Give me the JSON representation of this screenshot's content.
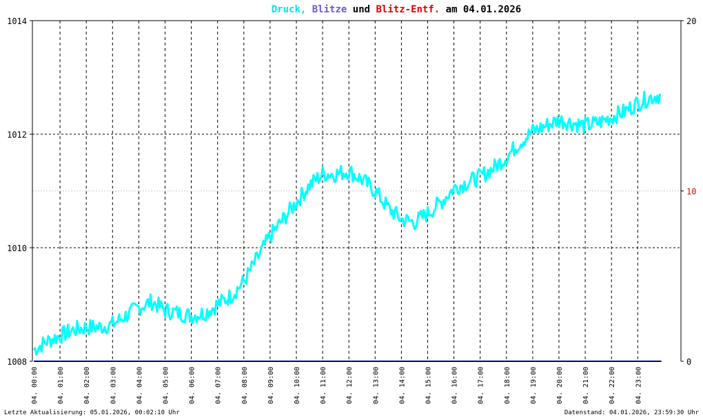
{
  "title": {
    "parts": [
      {
        "text": "Druck,",
        "color": "#00e5e5"
      },
      {
        "text": "Blitze",
        "color": "#6a5acd"
      },
      {
        "text": "und",
        "color": "#000000"
      },
      {
        "text": "Blitz-Entf.",
        "color": "#e00000"
      },
      {
        "text": "am 04.01.2026",
        "color": "#000000"
      }
    ]
  },
  "footer": {
    "left": "Letzte Aktualisierung: 05.01.2026, 00:02:10 Uhr",
    "right": "Datenstand: 04.01.2026, 23:59:30 Uhr"
  },
  "colors": {
    "pressure": "#00ffff",
    "lightning": "#00008b",
    "distance_axis": "#e00000",
    "grid": "#000000",
    "grid_minor": "#cccccc"
  },
  "chart_data": {
    "type": "line",
    "grid": true,
    "y_left": {
      "min": 1008,
      "max": 1014,
      "ticks": [
        1008,
        1010,
        1012,
        1014
      ]
    },
    "y_right": {
      "min": 0,
      "max": 20,
      "ticks": [
        0,
        10,
        20
      ],
      "tick_colors": [
        "#000000",
        "#e00000",
        "#000000"
      ]
    },
    "x_ticks": [
      "04. 00:00",
      "04. 01:00",
      "04. 02:00",
      "04. 03:00",
      "04. 04:00",
      "04. 05:00",
      "04. 06:00",
      "04. 07:00",
      "04. 08:00",
      "04. 09:00",
      "04. 10:00",
      "04. 11:00",
      "04. 12:00",
      "04. 13:00",
      "04. 14:00",
      "04. 15:00",
      "04. 16:00",
      "04. 17:00",
      "04. 18:00",
      "04. 19:00",
      "04. 20:00",
      "04. 21:00",
      "04. 22:00",
      "04. 23:00"
    ],
    "series": [
      {
        "name": "Druck",
        "x_hours": [
          0,
          0.5,
          1,
          1.5,
          2,
          2.5,
          3,
          3.5,
          4,
          4.5,
          5,
          5.5,
          6,
          6.5,
          7,
          7.5,
          8,
          8.5,
          9,
          9.5,
          10,
          10.5,
          11,
          11.5,
          12,
          12.5,
          13,
          13.5,
          14,
          14.5,
          15,
          15.5,
          16,
          16.5,
          17,
          17.5,
          18,
          18.5,
          19,
          19.5,
          20,
          20.5,
          21,
          21.5,
          22,
          22.5,
          23,
          23.5,
          23.9
        ],
        "values": [
          1008.2,
          1008.35,
          1008.45,
          1008.55,
          1008.6,
          1008.6,
          1008.65,
          1008.8,
          1008.95,
          1009.05,
          1008.9,
          1008.85,
          1008.8,
          1008.85,
          1009.0,
          1009.15,
          1009.4,
          1009.8,
          1010.2,
          1010.5,
          1010.8,
          1011.1,
          1011.3,
          1011.3,
          1011.35,
          1011.2,
          1011.0,
          1010.7,
          1010.5,
          1010.45,
          1010.6,
          1010.8,
          1011.05,
          1011.15,
          1011.25,
          1011.4,
          1011.6,
          1011.85,
          1012.05,
          1012.15,
          1012.25,
          1012.2,
          1012.15,
          1012.2,
          1012.3,
          1012.4,
          1012.55,
          1012.65,
          1012.7
        ]
      },
      {
        "name": "Blitze",
        "x_hours": [
          0,
          23.9
        ],
        "values": [
          0,
          0
        ]
      }
    ]
  }
}
